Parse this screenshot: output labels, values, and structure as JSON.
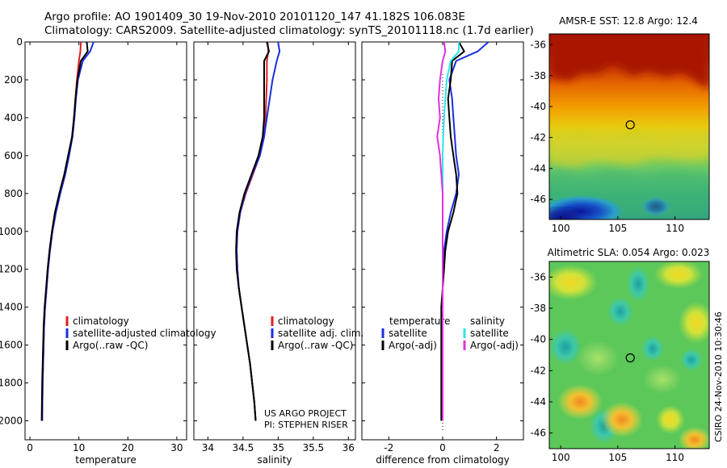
{
  "header": {
    "line1": "Argo profile: AO 1901409_30 19-Nov-2010 20101120_147 41.182S 106.083E",
    "line2": "Climatology: CARS2009. Satellite-adjusted climatology: synTS_20101118.nc (1.7d earlier)"
  },
  "credit": {
    "line1": "US ARGO PROJECT",
    "line2": "PI: STEPHEN RISER"
  },
  "side_stamp": "CSIRO 24-Nov-2010 10:30:46",
  "colors": {
    "red": "#dd1f1f",
    "blue": "#1a2ee0",
    "black": "#000000",
    "cyan": "#2de6e6",
    "magenta": "#e030e0"
  },
  "chart_data": [
    {
      "type": "line",
      "xlabel": "temperature",
      "ylim": [
        2100,
        0
      ],
      "xlim": [
        -1,
        32
      ],
      "x_ticks": [
        0,
        10,
        20,
        30
      ],
      "y_ticks": [
        0,
        200,
        400,
        600,
        800,
        1000,
        1200,
        1400,
        1600,
        1800,
        2000
      ],
      "legend": {
        "position": "lower-center",
        "labels": [
          "climatology",
          "satellite-adjusted climatology",
          "Argo(..raw -QC)"
        ]
      },
      "depth": [
        0,
        50,
        100,
        200,
        300,
        400,
        500,
        600,
        700,
        800,
        900,
        1000,
        1100,
        1200,
        1300,
        1400,
        1500,
        1600,
        1700,
        1800,
        1900,
        2000
      ],
      "series": [
        {
          "name": "climatology",
          "color": "red",
          "values": [
            10.4,
            10.3,
            10.0,
            9.6,
            9.3,
            9.0,
            8.6,
            8.0,
            7.2,
            6.2,
            5.3,
            4.6,
            4.1,
            3.7,
            3.4,
            3.1,
            2.9,
            2.8,
            2.7,
            2.6,
            2.55,
            2.5
          ]
        },
        {
          "name": "satellite-adjusted climatology",
          "color": "blue",
          "values": [
            13.0,
            12.3,
            10.8,
            9.8,
            9.4,
            9.1,
            8.7,
            8.0,
            7.2,
            6.2,
            5.3,
            4.6,
            4.1,
            3.7,
            3.4,
            3.1,
            2.9,
            2.8,
            2.7,
            2.6,
            2.55,
            2.5
          ]
        },
        {
          "name": "Argo(..raw -QC)",
          "color": "black",
          "values": [
            11.6,
            11.8,
            10.4,
            9.7,
            9.3,
            9.0,
            8.6,
            7.8,
            7.0,
            6.0,
            5.1,
            4.5,
            4.0,
            3.6,
            3.3,
            3.0,
            2.8,
            2.7,
            2.6,
            2.5,
            2.45,
            2.4
          ]
        }
      ]
    },
    {
      "type": "line",
      "xlabel": "salinity",
      "ylim": [
        2100,
        0
      ],
      "xlim": [
        33.8,
        36.1
      ],
      "x_ticks": [
        "34",
        "34.5",
        "35",
        "35.5",
        "36"
      ],
      "y_ticks": [
        0,
        200,
        400,
        600,
        800,
        1000,
        1200,
        1400,
        1600,
        1800,
        2000
      ],
      "legend": {
        "position": "lower-right",
        "labels": [
          "climatology",
          "satellite adj. clim.",
          "Argo(..raw -QC)"
        ]
      },
      "depth": [
        0,
        50,
        100,
        200,
        300,
        400,
        500,
        600,
        700,
        800,
        900,
        1000,
        1100,
        1200,
        1300,
        1400,
        1500,
        1600,
        1700,
        1800,
        1900,
        2000
      ],
      "series": [
        {
          "name": "climatology",
          "color": "red",
          "values": [
            34.85,
            34.86,
            34.84,
            34.84,
            34.83,
            34.82,
            34.8,
            34.74,
            34.64,
            34.54,
            34.46,
            34.42,
            34.41,
            34.42,
            34.44,
            34.48,
            34.52,
            34.56,
            34.6,
            34.63,
            34.66,
            34.68
          ]
        },
        {
          "name": "satellite adj. clim.",
          "color": "blue",
          "values": [
            35.0,
            35.02,
            34.98,
            34.92,
            34.88,
            34.84,
            34.8,
            34.74,
            34.63,
            34.53,
            34.46,
            34.42,
            34.41,
            34.42,
            34.44,
            34.48,
            34.52,
            34.56,
            34.6,
            34.63,
            34.66,
            34.68
          ]
        },
        {
          "name": "Argo(..raw -QC)",
          "color": "black",
          "values": [
            34.84,
            34.87,
            34.8,
            34.8,
            34.8,
            34.8,
            34.78,
            34.72,
            34.62,
            34.52,
            34.45,
            34.41,
            34.4,
            34.41,
            34.44,
            34.48,
            34.52,
            34.56,
            34.6,
            34.63,
            34.66,
            34.68
          ]
        }
      ]
    },
    {
      "type": "line",
      "xlabel": "difference from climatology",
      "ylim": [
        2100,
        0
      ],
      "xlim": [
        -3.0,
        3.0
      ],
      "x_ticks": [
        -2,
        0,
        2
      ],
      "y_ticks": [
        0,
        200,
        400,
        600,
        800,
        1000,
        1200,
        1400,
        1600,
        1800,
        2000
      ],
      "legend": {
        "position": "lower-center",
        "groups": [
          {
            "title": "temperature",
            "labels": [
              "satellite",
              "Argo(-adj)"
            ]
          },
          {
            "title": "salinity",
            "labels": [
              "satellite",
              "Argo(-adj)"
            ]
          }
        ]
      },
      "depth": [
        0,
        50,
        100,
        200,
        300,
        400,
        500,
        600,
        700,
        800,
        900,
        1000,
        1100,
        1200,
        1300,
        1400,
        1500,
        1600,
        1700,
        1800,
        1900,
        2000
      ],
      "series": [
        {
          "name": "temperature satellite",
          "color": "blue",
          "values": [
            1.7,
            1.3,
            0.5,
            0.25,
            0.35,
            0.4,
            0.45,
            0.5,
            0.6,
            0.5,
            0.3,
            0.15,
            0.05,
            0.02,
            0.0,
            0.0,
            0.0,
            0.0,
            0.0,
            0.0,
            0.0,
            0.0
          ]
        },
        {
          "name": "temperature Argo(-adj)",
          "color": "black",
          "values": [
            0.6,
            0.8,
            0.35,
            0.3,
            0.2,
            0.25,
            0.3,
            0.4,
            0.5,
            0.55,
            0.4,
            0.2,
            0.1,
            0.05,
            0.0,
            -0.05,
            -0.05,
            -0.05,
            -0.05,
            -0.05,
            -0.05,
            -0.05
          ]
        },
        {
          "name": "salinity satellite",
          "color": "cyan",
          "values": [
            0.6,
            0.6,
            0.3,
            0.15,
            0.1,
            0.05,
            0.02,
            0.0,
            0.0,
            0.0,
            0.0,
            0.0,
            0.0,
            0.0,
            0.0,
            0.0,
            0.0,
            0.0,
            0.0,
            0.0,
            0.0,
            0.0
          ]
        },
        {
          "name": "salinity Argo(-adj)",
          "color": "magenta",
          "values": [
            0.05,
            0.1,
            0.0,
            -0.1,
            -0.15,
            -0.1,
            -0.2,
            -0.1,
            -0.05,
            0.0,
            0.0,
            0.0,
            0.0,
            0.0,
            0.0,
            0.0,
            0.0,
            0.0,
            0.0,
            0.0,
            0.0,
            0.0
          ]
        }
      ]
    },
    {
      "type": "heatmap",
      "title": "AMSR-E SST: 12.8 Argo: 12.4",
      "x_ticks": [
        100,
        105,
        110
      ],
      "y_ticks": [
        -36,
        -38,
        -40,
        -42,
        -44,
        -46
      ],
      "xlim": [
        99.0,
        113.0
      ],
      "ylim": [
        -47.3,
        -35.3
      ],
      "marker": {
        "lon": 106.083,
        "lat": -41.182
      }
    },
    {
      "type": "heatmap",
      "title": "Altimetric SLA: 0.054 Argo: 0.023",
      "x_ticks": [
        100,
        105,
        110
      ],
      "y_ticks": [
        -36,
        -38,
        -40,
        -42,
        -44,
        -46
      ],
      "xlim": [
        99.0,
        113.0
      ],
      "ylim": [
        -47.0,
        -35.0
      ],
      "marker": {
        "lon": 106.083,
        "lat": -41.182
      }
    }
  ]
}
